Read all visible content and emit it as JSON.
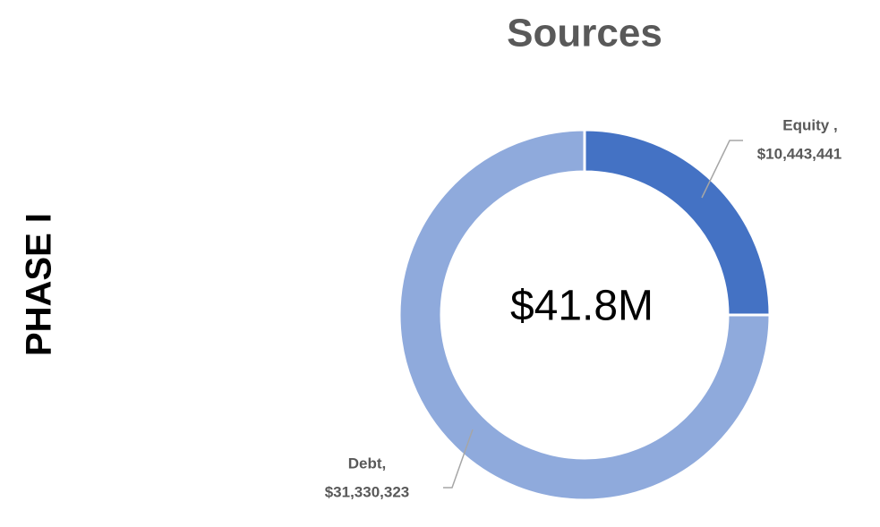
{
  "chart_data": {
    "type": "donut",
    "title": "Sources",
    "side_label": "PHASE I",
    "center_label": "$41.8M",
    "categories": [
      "Equity ,",
      "Debt,"
    ],
    "values": [
      10443441,
      31330323
    ],
    "value_labels": [
      "$10,443,441",
      "$31,330,323"
    ],
    "colors": [
      "#4472c4",
      "#8faadc"
    ]
  }
}
